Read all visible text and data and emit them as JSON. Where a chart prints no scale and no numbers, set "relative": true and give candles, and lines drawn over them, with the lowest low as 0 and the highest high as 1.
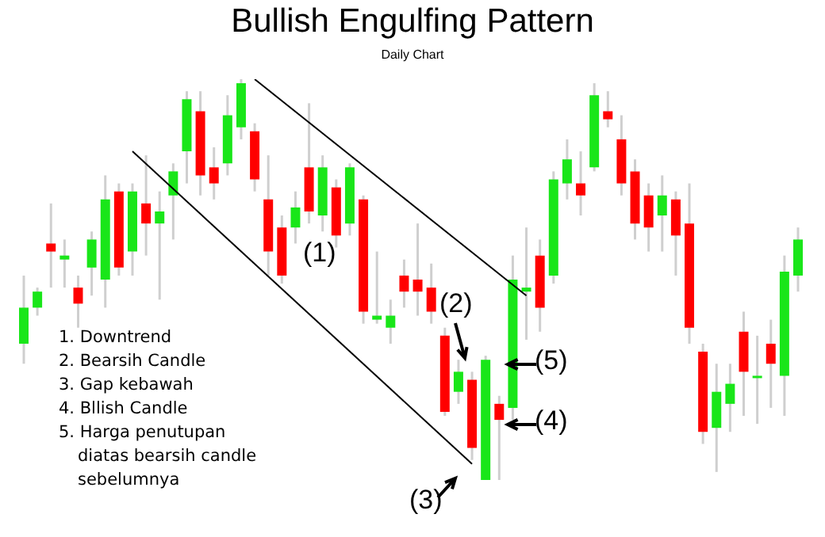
{
  "chart_data": {
    "type": "candlestick",
    "title": "Bullish Engulfing Pattern",
    "subtitle": "Daily Chart",
    "relative": true,
    "categories": [
      null,
      null,
      null,
      null,
      null,
      null,
      null,
      null,
      null,
      null,
      null,
      null,
      null,
      null,
      null,
      null,
      null,
      null,
      null,
      null,
      null,
      null,
      null,
      null,
      null,
      null,
      null,
      null,
      null,
      null,
      null,
      null,
      null,
      null,
      null,
      null,
      null,
      null,
      null,
      null,
      null,
      null,
      null,
      null,
      null,
      null,
      null,
      null,
      null,
      null,
      null,
      null,
      null,
      null,
      null,
      null,
      null,
      null
    ],
    "ohlc": [
      [
        0.34,
        0.51,
        0.29,
        0.43
      ],
      [
        0.43,
        0.48,
        0.41,
        0.47
      ],
      [
        0.59,
        0.69,
        0.48,
        0.57
      ],
      [
        0.55,
        0.6,
        0.48,
        0.56
      ],
      [
        0.48,
        0.51,
        0.38,
        0.44
      ],
      [
        0.53,
        0.62,
        0.46,
        0.6
      ],
      [
        0.5,
        0.76,
        0.43,
        0.7
      ],
      [
        0.72,
        0.74,
        0.51,
        0.53
      ],
      [
        0.57,
        0.74,
        0.51,
        0.72
      ],
      [
        0.69,
        0.81,
        0.56,
        0.64
      ],
      [
        0.64,
        0.72,
        0.45,
        0.67
      ],
      [
        0.71,
        0.79,
        0.6,
        0.77
      ],
      [
        0.82,
        0.97,
        0.74,
        0.95
      ],
      [
        0.92,
        0.97,
        0.71,
        0.76
      ],
      [
        0.78,
        0.83,
        0.7,
        0.74
      ],
      [
        0.79,
        0.96,
        0.76,
        0.91
      ],
      [
        0.88,
        1,
        0.85,
        0.99
      ],
      [
        0.87,
        0.89,
        0.72,
        0.75
      ],
      [
        0.7,
        0.81,
        0.51,
        0.57
      ],
      [
        0.63,
        0.66,
        0.49,
        0.51
      ],
      [
        0.63,
        0.72,
        0.59,
        0.68
      ],
      [
        0.78,
        0.94,
        0.64,
        0.67
      ],
      [
        0.66,
        0.81,
        0.62,
        0.78
      ],
      [
        0.73,
        0.75,
        0.58,
        0.61
      ],
      [
        0.64,
        0.79,
        0.61,
        0.78
      ],
      [
        0.7,
        0.71,
        0.39,
        0.42
      ],
      [
        0.4,
        0.57,
        0.39,
        0.41
      ],
      [
        0.38,
        0.45,
        0.34,
        0.41
      ],
      [
        0.51,
        0.55,
        0.43,
        0.47
      ],
      [
        0.5,
        0.64,
        0.41,
        0.47
      ],
      [
        0.48,
        0.54,
        0.39,
        0.42
      ],
      [
        0.36,
        0.38,
        0.16,
        0.17
      ],
      [
        0.22,
        0.3,
        0.19,
        0.27
      ],
      [
        0.25,
        0.27,
        0.05,
        0.08
      ],
      [
        0.0,
        0.31,
        0,
        0.3
      ],
      [
        0.19,
        0.21,
        0.0,
        0.15
      ],
      [
        0.18,
        0.56,
        0.15,
        0.5
      ],
      [
        0.47,
        0.63,
        0.35,
        0.48
      ],
      [
        0.56,
        0.6,
        0.37,
        0.43
      ],
      [
        0.51,
        0.77,
        0.49,
        0.75
      ],
      [
        0.74,
        0.85,
        0.7,
        0.8
      ],
      [
        0.74,
        0.82,
        0.66,
        0.71
      ],
      [
        0.78,
        0.99,
        0.77,
        0.96
      ],
      [
        0.92,
        0.97,
        0.88,
        0.9
      ],
      [
        0.85,
        0.91,
        0.71,
        0.74
      ],
      [
        0.77,
        0.8,
        0.6,
        0.64
      ],
      [
        0.71,
        0.74,
        0.57,
        0.63
      ],
      [
        0.66,
        0.76,
        0.57,
        0.71
      ],
      [
        0.7,
        0.72,
        0.51,
        0.61
      ],
      [
        0.64,
        0.74,
        0.34,
        0.38
      ],
      [
        0.32,
        0.34,
        0.09,
        0.12
      ],
      [
        0.13,
        0.29,
        0.02,
        0.22
      ],
      [
        0.19,
        0.29,
        0.12,
        0.24
      ],
      [
        0.37,
        0.42,
        0.16,
        0.27
      ],
      [
        0.26,
        0.36,
        0.14,
        0.26
      ],
      [
        0.34,
        0.4,
        0.18,
        0.29
      ],
      [
        0.26,
        0.56,
        0.16,
        0.52
      ],
      [
        0.51,
        0.63,
        0.47,
        0.6
      ]
    ],
    "colors": [
      "#19e619",
      "#19e619",
      "#ff0000",
      "#19e619",
      "#ff0000",
      "#19e619",
      "#19e619",
      "#ff0000",
      "#19e619",
      "#ff0000",
      "#19e619",
      "#19e619",
      "#19e619",
      "#ff0000",
      "#ff0000",
      "#19e619",
      "#19e619",
      "#ff0000",
      "#ff0000",
      "#ff0000",
      "#19e619",
      "#ff0000",
      "#19e619",
      "#ff0000",
      "#19e619",
      "#ff0000",
      "#19e619",
      "#19e619",
      "#ff0000",
      "#ff0000",
      "#ff0000",
      "#ff0000",
      "#19e619",
      "#ff0000",
      "#19e619",
      "#ff0000",
      "#19e619",
      "#19e619",
      "#ff0000",
      "#19e619",
      "#19e619",
      "#ff0000",
      "#19e619",
      "#ff0000",
      "#ff0000",
      "#ff0000",
      "#ff0000",
      "#19e619",
      "#ff0000",
      "#ff0000",
      "#ff0000",
      "#19e619",
      "#19e619",
      "#ff0000",
      "#19e619",
      "#ff0000",
      "#19e619",
      "#19e619"
    ],
    "series": [
      {
        "type": "line",
        "color": "#000000",
        "values": [
          null,
          null,
          null,
          null,
          null,
          null,
          null,
          null,
          null,
          null,
          null,
          null,
          null,
          null,
          null,
          null,
          null,
          1.0,
          null,
          null,
          null,
          null,
          null,
          null,
          null,
          null,
          null,
          null,
          null,
          null,
          null,
          null,
          null,
          null,
          null,
          null,
          null,
          0.46,
          null,
          null,
          null,
          null,
          null,
          null,
          null,
          null,
          null,
          null,
          null,
          null,
          null,
          null,
          null,
          null,
          null,
          null,
          null,
          null
        ]
      },
      {
        "type": "line",
        "color": "#000000",
        "values": [
          null,
          null,
          null,
          null,
          null,
          null,
          null,
          null,
          0.82,
          null,
          null,
          null,
          null,
          null,
          null,
          null,
          null,
          null,
          null,
          null,
          null,
          null,
          null,
          null,
          null,
          null,
          null,
          null,
          null,
          null,
          null,
          null,
          null,
          0.04,
          null,
          null,
          null,
          null,
          null,
          null,
          null,
          null,
          null,
          null,
          null,
          null,
          null,
          null,
          null,
          null,
          null,
          null,
          null,
          null,
          null,
          null,
          null,
          null
        ]
      }
    ],
    "annotations": [
      "(1)",
      "(2)",
      "(3)",
      "(4)",
      "(5)",
      "1. Downtrend",
      "2. Bearsih Candle",
      "3. Gap kebawah",
      "4. Bllish Candle",
      "5. Harga penutupan diatas bearsih candle sebelumnya"
    ]
  }
}
